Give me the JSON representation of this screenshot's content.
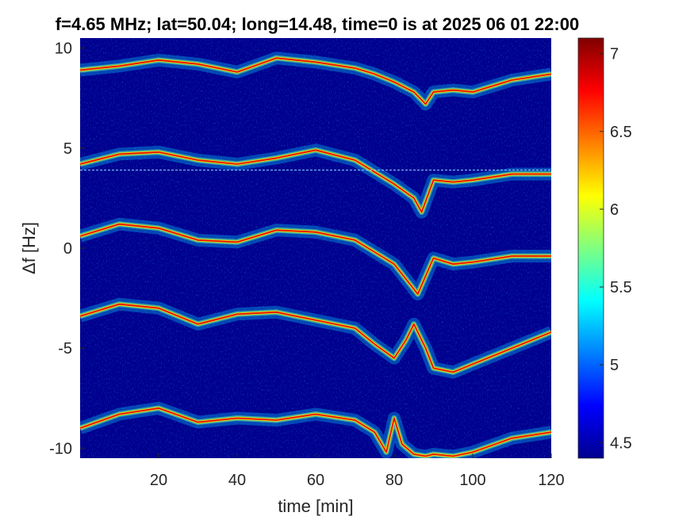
{
  "chart_data": {
    "type": "heatmap",
    "title": "f=4.65 MHz;  lat=50.04; long=14.48, time=0 is at 2025 06 01 22:00",
    "xlabel": "time [min]",
    "ylabel": "Δf [Hz]",
    "xlim": [
      0,
      120
    ],
    "ylim": [
      -10.5,
      10.5
    ],
    "xticks": [
      20,
      40,
      60,
      80,
      100,
      120
    ],
    "xtick_labels": [
      "20",
      "40",
      "60",
      "80",
      "100",
      "120"
    ],
    "yticks": [
      10,
      5,
      0,
      -5,
      -10
    ],
    "ytick_labels": [
      "10",
      "5",
      "0",
      "-5",
      "-10"
    ],
    "colorbar": {
      "colormap": "jet",
      "clim": [
        4.4,
        7.1
      ],
      "ticks": [
        7,
        6.5,
        6,
        5.5,
        5,
        4.5
      ],
      "tick_labels": [
        "7",
        "6.5",
        "6",
        "5.5",
        "5",
        "4.5"
      ]
    },
    "background_color": "#00008f",
    "reference_line": {
      "y": 3.9,
      "color": "#7fbfff"
    },
    "traces": [
      {
        "t": [
          0,
          10,
          20,
          30,
          40,
          50,
          60,
          70,
          75,
          80,
          85,
          88,
          90,
          95,
          100,
          110,
          120
        ],
        "df": [
          8.9,
          9.1,
          9.4,
          9.2,
          8.8,
          9.5,
          9.3,
          9.0,
          8.7,
          8.3,
          7.8,
          7.2,
          7.8,
          7.9,
          7.8,
          8.4,
          8.7
        ]
      },
      {
        "t": [
          0,
          10,
          20,
          30,
          40,
          50,
          60,
          70,
          75,
          80,
          85,
          87,
          90,
          95,
          100,
          110,
          120
        ],
        "df": [
          4.2,
          4.7,
          4.8,
          4.4,
          4.2,
          4.5,
          4.9,
          4.4,
          3.8,
          3.2,
          2.5,
          1.8,
          3.4,
          3.3,
          3.4,
          3.7,
          3.7
        ]
      },
      {
        "t": [
          0,
          10,
          20,
          30,
          40,
          50,
          60,
          70,
          75,
          80,
          84,
          86,
          90,
          95,
          100,
          110,
          120
        ],
        "df": [
          0.6,
          1.2,
          1.0,
          0.4,
          0.3,
          0.9,
          0.8,
          0.4,
          -0.2,
          -0.8,
          -1.8,
          -2.3,
          -0.5,
          -0.8,
          -0.7,
          -0.4,
          -0.4
        ]
      },
      {
        "t": [
          0,
          10,
          20,
          30,
          40,
          50,
          60,
          70,
          75,
          80,
          83,
          85,
          88,
          90,
          95,
          100,
          110,
          120
        ],
        "df": [
          -3.4,
          -2.8,
          -3.0,
          -3.8,
          -3.3,
          -3.2,
          -3.6,
          -4.0,
          -4.8,
          -5.5,
          -4.6,
          -3.8,
          -5.0,
          -6.0,
          -6.2,
          -5.8,
          -5.0,
          -4.2
        ]
      },
      {
        "t": [
          0,
          10,
          20,
          30,
          40,
          50,
          60,
          70,
          75,
          78,
          80,
          82,
          85,
          88,
          90,
          95,
          100,
          110,
          120
        ],
        "df": [
          -9.0,
          -8.3,
          -8.0,
          -8.7,
          -8.5,
          -8.6,
          -8.3,
          -8.6,
          -9.2,
          -10.2,
          -8.5,
          -9.8,
          -10.3,
          -10.4,
          -10.3,
          -10.4,
          -10.2,
          -9.5,
          -9.2
        ]
      }
    ]
  }
}
